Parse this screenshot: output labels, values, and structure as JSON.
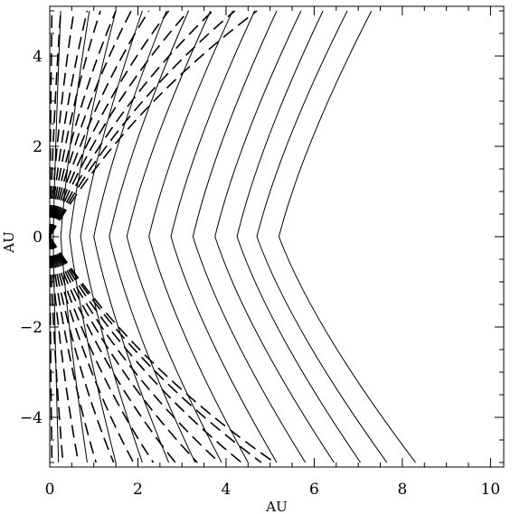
{
  "chart_data": {
    "type": "line",
    "xlabel": "AU",
    "ylabel": "AU",
    "xlim": [
      0,
      10.3
    ],
    "ylim": [
      -5.1,
      5.1
    ],
    "x_ticks": [
      0,
      2,
      4,
      6,
      8,
      10
    ],
    "y_ticks": [
      -4,
      -2,
      0,
      2,
      4
    ],
    "x_tick_labels": [
      "0",
      "2",
      "4",
      "6",
      "8",
      "10"
    ],
    "y_tick_labels": [
      "−4",
      "−2",
      "0",
      "2",
      "4"
    ],
    "grid": false,
    "solid_color": "#000000",
    "dashed_color": "#000000",
    "solid_curves": [
      {
        "vertex": [
          0.08,
          0
        ],
        "upper_end": [
          0.25,
          5.0
        ],
        "lower_end": [
          0.2,
          -5.0
        ]
      },
      {
        "vertex": [
          0.25,
          0
        ],
        "upper_end": [
          0.9,
          5.0
        ],
        "lower_end": [
          0.85,
          -5.0
        ]
      },
      {
        "vertex": [
          0.45,
          0
        ],
        "upper_end": [
          1.5,
          5.0
        ],
        "lower_end": [
          1.5,
          -5.0
        ]
      },
      {
        "vertex": [
          0.7,
          0
        ],
        "upper_end": [
          2.1,
          5.0
        ],
        "lower_end": [
          2.1,
          -5.0
        ]
      },
      {
        "vertex": [
          1.0,
          0
        ],
        "upper_end": [
          2.65,
          5.0
        ],
        "lower_end": [
          2.7,
          -5.0
        ]
      },
      {
        "vertex": [
          1.35,
          0
        ],
        "upper_end": [
          3.15,
          5.0
        ],
        "lower_end": [
          3.3,
          -5.0
        ]
      },
      {
        "vertex": [
          1.75,
          0
        ],
        "upper_end": [
          3.65,
          5.0
        ],
        "lower_end": [
          3.9,
          -5.0
        ]
      },
      {
        "vertex": [
          2.25,
          0
        ],
        "upper_end": [
          4.15,
          5.0
        ],
        "lower_end": [
          4.5,
          -5.0
        ]
      },
      {
        "vertex": [
          2.75,
          0
        ],
        "upper_end": [
          4.65,
          5.0
        ],
        "lower_end": [
          5.15,
          -5.0
        ]
      },
      {
        "vertex": [
          3.25,
          0
        ],
        "upper_end": [
          5.15,
          5.0
        ],
        "lower_end": [
          5.8,
          -5.0
        ]
      },
      {
        "vertex": [
          3.75,
          0
        ],
        "upper_end": [
          5.7,
          5.0
        ],
        "lower_end": [
          6.45,
          -5.0
        ]
      },
      {
        "vertex": [
          4.25,
          0
        ],
        "upper_end": [
          6.2,
          5.0
        ],
        "lower_end": [
          7.05,
          -5.0
        ]
      },
      {
        "vertex": [
          4.7,
          0
        ],
        "upper_end": [
          6.75,
          5.0
        ],
        "lower_end": [
          7.65,
          -5.0
        ]
      },
      {
        "vertex": [
          5.2,
          0
        ],
        "upper_end": [
          7.3,
          5.0
        ],
        "lower_end": [
          8.3,
          -5.0
        ]
      }
    ],
    "dashed_curves": [
      {
        "upper_end": [
          0.05,
          5.0
        ],
        "lower_end": [
          0.05,
          -5.0
        ]
      },
      {
        "upper_end": [
          0.25,
          5.0
        ],
        "lower_end": [
          0.3,
          -5.0
        ]
      },
      {
        "upper_end": [
          0.55,
          5.0
        ],
        "lower_end": [
          0.65,
          -5.0
        ]
      },
      {
        "upper_end": [
          0.85,
          5.0
        ],
        "lower_end": [
          1.05,
          -5.0
        ]
      },
      {
        "upper_end": [
          1.15,
          5.0
        ],
        "lower_end": [
          1.45,
          -5.0
        ]
      },
      {
        "upper_end": [
          1.5,
          5.0
        ],
        "lower_end": [
          1.9,
          -5.0
        ]
      },
      {
        "upper_end": [
          1.85,
          5.0
        ],
        "lower_end": [
          2.35,
          -5.0
        ]
      },
      {
        "upper_end": [
          2.25,
          5.0
        ],
        "lower_end": [
          2.85,
          -5.0
        ]
      },
      {
        "upper_end": [
          2.7,
          5.0
        ],
        "lower_end": [
          3.35,
          -5.0
        ]
      },
      {
        "upper_end": [
          3.15,
          5.0
        ],
        "lower_end": [
          3.85,
          -5.0
        ]
      },
      {
        "upper_end": [
          3.7,
          5.0
        ],
        "lower_end": [
          4.35,
          -5.0
        ]
      },
      {
        "upper_end": [
          4.2,
          5.0
        ],
        "lower_end": [
          4.8,
          -5.0
        ]
      },
      {
        "upper_end": [
          4.7,
          5.0
        ],
        "lower_end": [
          5.1,
          -5.0
        ]
      }
    ]
  }
}
